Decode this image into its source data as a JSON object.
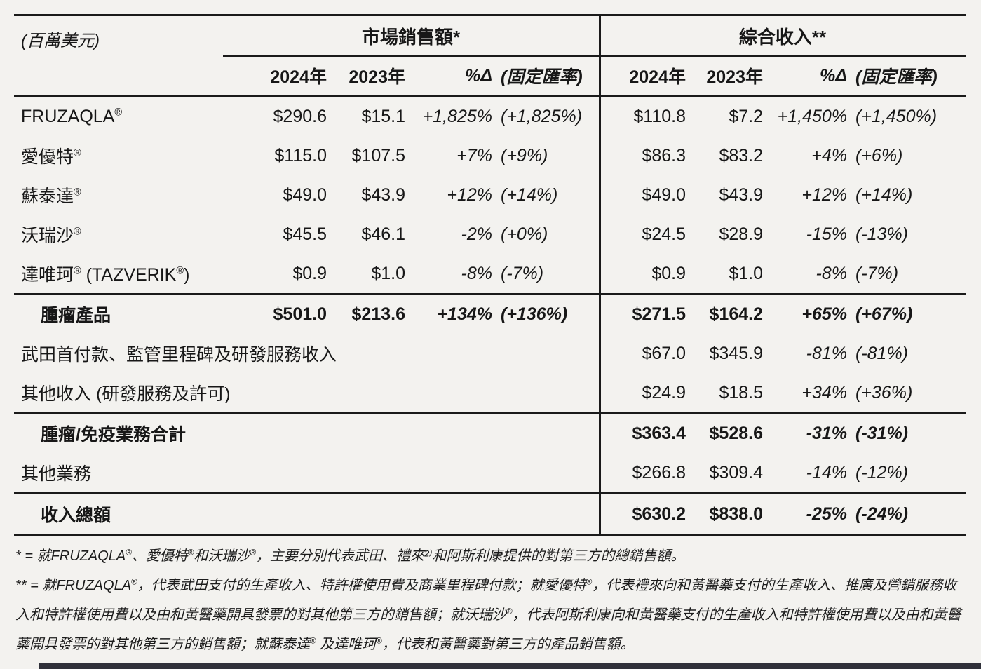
{
  "table": {
    "unit_label": "(百萬美元)",
    "sections": {
      "market_sales": "市場銷售額*",
      "consolidated_revenue": "綜合收入**"
    },
    "columns": {
      "y2024": "2024年",
      "y2023": "2023年",
      "pct": "%Δ",
      "fx": "(固定匯率)"
    }
  },
  "rows": [
    {
      "label": "FRUZAQLA®",
      "ms2024": "$290.6",
      "ms2023": "$15.1",
      "mspct": "+1,825%",
      "msfx": "(+1,825%)",
      "ci2024": "$110.8",
      "ci2023": "$7.2",
      "cipct": "+1,450%",
      "cifx": "(+1,450%)"
    },
    {
      "label": "愛優特®",
      "ms2024": "$115.0",
      "ms2023": "$107.5",
      "mspct": "+7%",
      "msfx": "(+9%)",
      "ci2024": "$86.3",
      "ci2023": "$83.2",
      "cipct": "+4%",
      "cifx": "(+6%)"
    },
    {
      "label": "蘇泰達®",
      "ms2024": "$49.0",
      "ms2023": "$43.9",
      "mspct": "+12%",
      "msfx": "(+14%)",
      "ci2024": "$49.0",
      "ci2023": "$43.9",
      "cipct": "+12%",
      "cifx": "(+14%)"
    },
    {
      "label": "沃瑞沙®",
      "ms2024": "$45.5",
      "ms2023": "$46.1",
      "mspct": "-2%",
      "msfx": "(+0%)",
      "ci2024": "$24.5",
      "ci2023": "$28.9",
      "cipct": "-15%",
      "cifx": "(-13%)"
    },
    {
      "label": "達唯珂® (TAZVERIK®)",
      "ms2024": "$0.9",
      "ms2023": "$1.0",
      "mspct": "-8%",
      "msfx": "(-7%)",
      "ci2024": "$0.9",
      "ci2023": "$1.0",
      "cipct": "-8%",
      "cifx": "(-7%)"
    },
    {
      "label": "腫瘤產品",
      "ms2024": "$501.0",
      "ms2023": "$213.6",
      "mspct": "+134%",
      "msfx": "(+136%)",
      "ci2024": "$271.5",
      "ci2023": "$164.2",
      "cipct": "+65%",
      "cifx": "(+67%)"
    },
    {
      "label": "武田首付款、監管里程碑及研發服務收入",
      "ms2024": "",
      "ms2023": "",
      "mspct": "",
      "msfx": "",
      "ci2024": "$67.0",
      "ci2023": "$345.9",
      "cipct": "-81%",
      "cifx": "(-81%)"
    },
    {
      "label": "其他收入 (研發服務及許可)",
      "ms2024": "",
      "ms2023": "",
      "mspct": "",
      "msfx": "",
      "ci2024": "$24.9",
      "ci2023": "$18.5",
      "cipct": "+34%",
      "cifx": "(+36%)"
    },
    {
      "label": "腫瘤/免疫業務合計",
      "ms2024": "",
      "ms2023": "",
      "mspct": "",
      "msfx": "",
      "ci2024": "$363.4",
      "ci2023": "$528.6",
      "cipct": "-31%",
      "cifx": "(-31%)"
    },
    {
      "label": "其他業務",
      "ms2024": "",
      "ms2023": "",
      "mspct": "",
      "msfx": "",
      "ci2024": "$266.8",
      "ci2023": "$309.4",
      "cipct": "-14%",
      "cifx": "(-12%)"
    },
    {
      "label": "收入總額",
      "ms2024": "",
      "ms2023": "",
      "mspct": "",
      "msfx": "",
      "ci2024": "$630.2",
      "ci2023": "$838.0",
      "cipct": "-25%",
      "cifx": "(-24%)"
    }
  ],
  "footnotes": {
    "note1": "* = 就FRUZAQLA®、愛優特®和沃瑞沙®，主要分別代表武田、禮來²⁾和阿斯利康提供的對第三方的總銷售額。",
    "note2": "** = 就FRUZAQLA®，代表武田支付的生產收入、特許權使用費及商業里程碑付款；就愛優特®，代表禮來向和黃醫藥支付的生產收入、推廣及營銷服務收入和特許權使用費以及由和黃醫藥開具發票的對其他第三方的銷售額；就沃瑞沙®，代表阿斯利康向和黃醫藥支付的生產收入和特許權使用費以及由和黃醫藥開具發票的對其他第三方的銷售額；就蘇泰達® 及達唯珂®，代表和黃醫藥對第三方的產品銷售額。"
  },
  "colors": {
    "text": "#171717",
    "line": "#1a1a1a",
    "background": "#f3f2ef"
  }
}
